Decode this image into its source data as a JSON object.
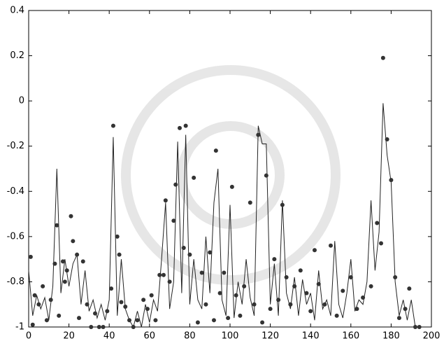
{
  "chart_data": {
    "type": "line",
    "xlim": [
      0,
      200
    ],
    "xticks": [
      0,
      20,
      40,
      60,
      80,
      100,
      120,
      140,
      160,
      180,
      200
    ],
    "ylim": [
      -1,
      0.4
    ],
    "yticks": [
      -1,
      -0.8,
      -0.6,
      -0.4,
      -0.2,
      0,
      0.2,
      0.4
    ],
    "series": [
      {
        "style": "line",
        "color": "#222222",
        "x": [
          0,
          2,
          4,
          6,
          8,
          10,
          12,
          14,
          16,
          18,
          20,
          22,
          24,
          26,
          28,
          30,
          32,
          34,
          36,
          38,
          40,
          42,
          44,
          46,
          48,
          50,
          52,
          54,
          56,
          58,
          60,
          62,
          64,
          66,
          68,
          70,
          72,
          74,
          76,
          78,
          80,
          82,
          84,
          86,
          88,
          90,
          92,
          94,
          96,
          98,
          100,
          102,
          104,
          106,
          108,
          110,
          112,
          114,
          116,
          118,
          120,
          122,
          124,
          126,
          128,
          130,
          132,
          134,
          136,
          138,
          140,
          142,
          144,
          146,
          148,
          150,
          152,
          154,
          156,
          158,
          160,
          162,
          164,
          166,
          168,
          170,
          172,
          174,
          176,
          178,
          180,
          182,
          184,
          186,
          188,
          190,
          192,
          194
        ],
        "values": [
          -0.75,
          -0.95,
          -0.86,
          -0.92,
          -0.87,
          -0.97,
          -0.82,
          -0.3,
          -0.85,
          -0.7,
          -0.82,
          -0.72,
          -0.68,
          -0.9,
          -0.75,
          -0.93,
          -0.88,
          -0.96,
          -0.9,
          -0.97,
          -0.88,
          -0.16,
          -0.95,
          -0.7,
          -0.92,
          -0.97,
          -1,
          -0.93,
          -1,
          -0.9,
          -0.98,
          -0.88,
          -0.93,
          -0.7,
          -0.45,
          -0.92,
          -0.8,
          -0.18,
          -0.85,
          -0.15,
          -0.9,
          -0.7,
          -0.88,
          -0.92,
          -0.6,
          -0.85,
          -0.45,
          -0.3,
          -0.88,
          -0.95,
          -0.46,
          -0.96,
          -0.8,
          -0.9,
          -0.7,
          -0.87,
          -0.95,
          -0.11,
          -0.19,
          -0.19,
          -0.9,
          -0.72,
          -0.95,
          -0.44,
          -0.85,
          -0.92,
          -0.78,
          -0.95,
          -0.79,
          -0.9,
          -0.85,
          -0.97,
          -0.75,
          -0.92,
          -0.88,
          -0.95,
          -0.62,
          -0.9,
          -0.96,
          -0.85,
          -0.7,
          -0.93,
          -0.88,
          -0.9,
          -0.8,
          -0.44,
          -0.75,
          -0.58,
          -0.01,
          -0.24,
          -0.36,
          -0.8,
          -0.95,
          -0.88,
          -0.97,
          -0.88,
          -1,
          -1
        ]
      },
      {
        "style": "markers",
        "color": "#333333",
        "x": [
          1,
          2,
          3,
          5,
          7,
          9,
          11,
          13,
          14,
          15,
          17,
          18,
          19,
          21,
          22,
          24,
          25,
          27,
          29,
          31,
          33,
          35,
          37,
          39,
          41,
          42,
          44,
          45,
          46,
          48,
          50,
          52,
          54,
          57,
          59,
          61,
          63,
          65,
          67,
          68,
          70,
          72,
          73,
          75,
          77,
          78,
          80,
          82,
          84,
          86,
          88,
          90,
          92,
          93,
          95,
          97,
          99,
          101,
          103,
          105,
          107,
          110,
          112,
          114,
          116,
          118,
          120,
          122,
          124,
          126,
          128,
          130,
          132,
          135,
          138,
          140,
          142,
          144,
          147,
          150,
          153,
          156,
          160,
          163,
          166,
          170,
          173,
          175,
          176,
          178,
          180,
          182,
          184,
          187,
          189,
          192,
          194
        ],
        "values": [
          -0.69,
          -0.99,
          -0.86,
          -0.9,
          -0.82,
          -0.97,
          -0.88,
          -0.72,
          -0.55,
          -0.95,
          -0.71,
          -0.8,
          -0.75,
          -0.51,
          -0.62,
          -0.68,
          -0.96,
          -0.71,
          -0.9,
          -1,
          -0.94,
          -1,
          -1,
          -0.93,
          -0.83,
          -0.11,
          -0.6,
          -0.68,
          -0.89,
          -0.91,
          -0.97,
          -1,
          -0.97,
          -0.88,
          -0.92,
          -0.86,
          -0.97,
          -0.77,
          -0.77,
          -0.44,
          -0.8,
          -0.53,
          -0.37,
          -0.12,
          -0.65,
          -0.11,
          -0.68,
          -0.34,
          -0.98,
          -0.76,
          -0.9,
          -0.67,
          -0.97,
          -0.22,
          -0.85,
          -0.76,
          -0.96,
          -0.38,
          -0.86,
          -0.95,
          -0.82,
          -0.45,
          -0.9,
          -0.15,
          -0.98,
          -0.33,
          -0.92,
          -0.7,
          -0.88,
          -0.46,
          -0.78,
          -0.9,
          -0.82,
          -0.75,
          -0.85,
          -0.93,
          -0.66,
          -0.81,
          -0.9,
          -0.64,
          -0.95,
          -0.84,
          -0.78,
          -0.92,
          -0.87,
          -0.82,
          -0.54,
          -0.63,
          0.19,
          -0.17,
          -0.35,
          -0.78,
          -0.96,
          -0.92,
          -0.83,
          -1,
          -1
        ]
      }
    ]
  }
}
